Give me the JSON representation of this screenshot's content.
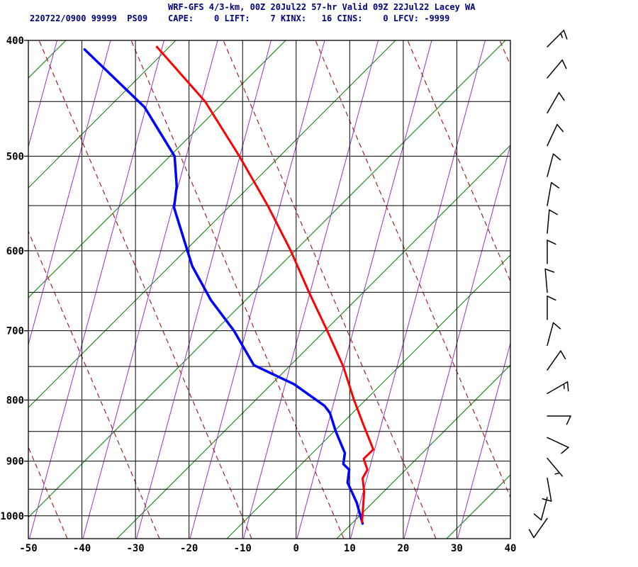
{
  "title": {
    "line1": "WRF-GFS 4/3-km, 00Z 20Jul22 57-hr Valid 09Z 22Jul22 Lacey WA",
    "station_line": "220722/0900 99999  PS09",
    "indices_line": "CAPE:    0 LIFT:    7 KINX:   16 CINS:    0 LFCV: -9999"
  },
  "indices": {
    "CAPE": 0,
    "LIFT": 7,
    "KINX": 16,
    "CINS": 0,
    "LFCV": -9999
  },
  "colors": {
    "title_text": "#000080",
    "axis_text": "#000000",
    "grid": "#000000",
    "green_lines": "#008000",
    "purple_lines": "#9932cc",
    "dashed_lines": "#aa2222",
    "temperature": "#ff0000",
    "dewpoint": "#0000ff",
    "wind_barb": "#000000"
  },
  "axes": {
    "x_ticks": [
      -50,
      -40,
      -30,
      -20,
      -10,
      0,
      10,
      20,
      30,
      40
    ],
    "y_ticks": [
      400,
      500,
      600,
      700,
      800,
      900,
      1000
    ],
    "x_range": [
      -50,
      40
    ],
    "p_range": [
      400,
      1045
    ]
  },
  "chart_data": {
    "type": "line",
    "title": "WRF-GFS 4/3-km, 00Z 20Jul22 57-hr Valid 09Z 22Jul22 Lacey WA",
    "xlabel": "",
    "ylabel": "",
    "x_axis_ticks_degC": [
      -50,
      -40,
      -30,
      -20,
      -10,
      0,
      10,
      20,
      30,
      40
    ],
    "pressure_ticks_hPa": [
      400,
      500,
      600,
      700,
      800,
      900,
      1000
    ],
    "series": [
      {
        "name": "temperature_degC",
        "color": "#ff0000",
        "points_p_T": [
          [
            405,
            -26
          ],
          [
            450,
            -17
          ],
          [
            500,
            -10.6
          ],
          [
            550,
            -5.3
          ],
          [
            600,
            -1
          ],
          [
            650,
            2.4
          ],
          [
            700,
            5.8
          ],
          [
            750,
            8.8
          ],
          [
            800,
            10.8
          ],
          [
            840,
            12.6
          ],
          [
            880,
            14.4
          ],
          [
            896,
            12.6
          ],
          [
            915,
            13.3
          ],
          [
            930,
            12.4
          ],
          [
            955,
            12.7
          ],
          [
            1012,
            12.3
          ]
        ]
      },
      {
        "name": "dewpoint_degC",
        "color": "#0000ff",
        "points_p_T": [
          [
            407,
            -39.5
          ],
          [
            455,
            -28.3
          ],
          [
            500,
            -22.7
          ],
          [
            530,
            -22.3
          ],
          [
            552,
            -22.8
          ],
          [
            600,
            -20.3
          ],
          [
            618,
            -19.4
          ],
          [
            660,
            -15.9
          ],
          [
            700,
            -11.6
          ],
          [
            748,
            -7.9
          ],
          [
            776,
            -0.4
          ],
          [
            809,
            5.3
          ],
          [
            820,
            6.3
          ],
          [
            850,
            7.4
          ],
          [
            886,
            9.1
          ],
          [
            905,
            8.8
          ],
          [
            915,
            9.9
          ],
          [
            938,
            9.6
          ],
          [
            975,
            11.3
          ],
          [
            1015,
            12.4
          ]
        ]
      }
    ],
    "wind_barbs": [
      {
        "p": 405,
        "dir_deg": 45,
        "speed_kt": 15
      },
      {
        "p": 430,
        "dir_deg": 40,
        "speed_kt": 10
      },
      {
        "p": 460,
        "dir_deg": 30,
        "speed_kt": 10
      },
      {
        "p": 490,
        "dir_deg": 25,
        "speed_kt": 10
      },
      {
        "p": 520,
        "dir_deg": 15,
        "speed_kt": 10
      },
      {
        "p": 550,
        "dir_deg": 10,
        "speed_kt": 10
      },
      {
        "p": 580,
        "dir_deg": 5,
        "speed_kt": 10
      },
      {
        "p": 615,
        "dir_deg": 0,
        "speed_kt": 10
      },
      {
        "p": 650,
        "dir_deg": 355,
        "speed_kt": 10
      },
      {
        "p": 685,
        "dir_deg": 0,
        "speed_kt": 10
      },
      {
        "p": 720,
        "dir_deg": 15,
        "speed_kt": 10
      },
      {
        "p": 755,
        "dir_deg": 35,
        "speed_kt": 10
      },
      {
        "p": 790,
        "dir_deg": 60,
        "speed_kt": 15
      },
      {
        "p": 825,
        "dir_deg": 90,
        "speed_kt": 10
      },
      {
        "p": 860,
        "dir_deg": 115,
        "speed_kt": 10
      },
      {
        "p": 895,
        "dir_deg": 140,
        "speed_kt": 5
      },
      {
        "p": 930,
        "dir_deg": 170,
        "speed_kt": 10
      },
      {
        "p": 965,
        "dir_deg": 195,
        "speed_kt": 10
      },
      {
        "p": 1005,
        "dir_deg": 215,
        "speed_kt": 10
      }
    ]
  }
}
